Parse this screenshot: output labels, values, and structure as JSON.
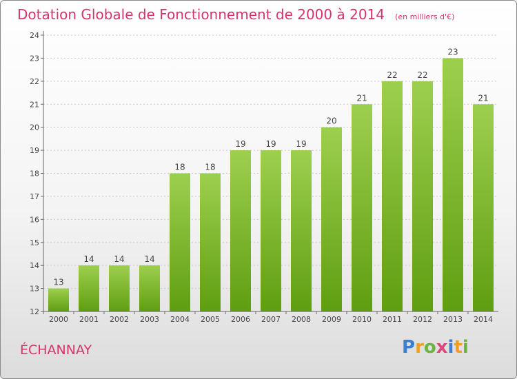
{
  "chart_data": {
    "type": "bar",
    "title": "Dotation Globale de Fonctionnement de 2000 à 2014",
    "subtitle": "(en milliers d'€)",
    "categories": [
      "2000",
      "2001",
      "2002",
      "2003",
      "2004",
      "2005",
      "2006",
      "2007",
      "2008",
      "2009",
      "2010",
      "2011",
      "2012",
      "2013",
      "2014"
    ],
    "values": [
      13,
      14,
      14,
      14,
      18,
      18,
      19,
      19,
      19,
      20,
      21,
      22,
      22,
      23,
      21
    ],
    "data_labels": [
      "13",
      "14",
      "14",
      "14",
      "18",
      "18",
      "19",
      "19",
      "19",
      "20",
      "21",
      "22",
      "22",
      "23",
      "21"
    ],
    "y_ticks": [
      "12",
      "13",
      "14",
      "15",
      "16",
      "17",
      "18",
      "19",
      "20",
      "21",
      "22",
      "23",
      "24"
    ],
    "ylim": [
      12,
      24
    ],
    "grid": true,
    "bar_color_top": "#9dcf4f",
    "bar_color_bottom": "#5f9e10",
    "legend": "none"
  },
  "commune": "ÉCHANNAY",
  "logo": {
    "p": "P",
    "r": "r",
    "o": "o",
    "x": "x",
    "i1": "i",
    "t": "t",
    "i2": "i"
  },
  "colors": {
    "accent": "#d6336c",
    "gridline": "#c8c8c8"
  }
}
